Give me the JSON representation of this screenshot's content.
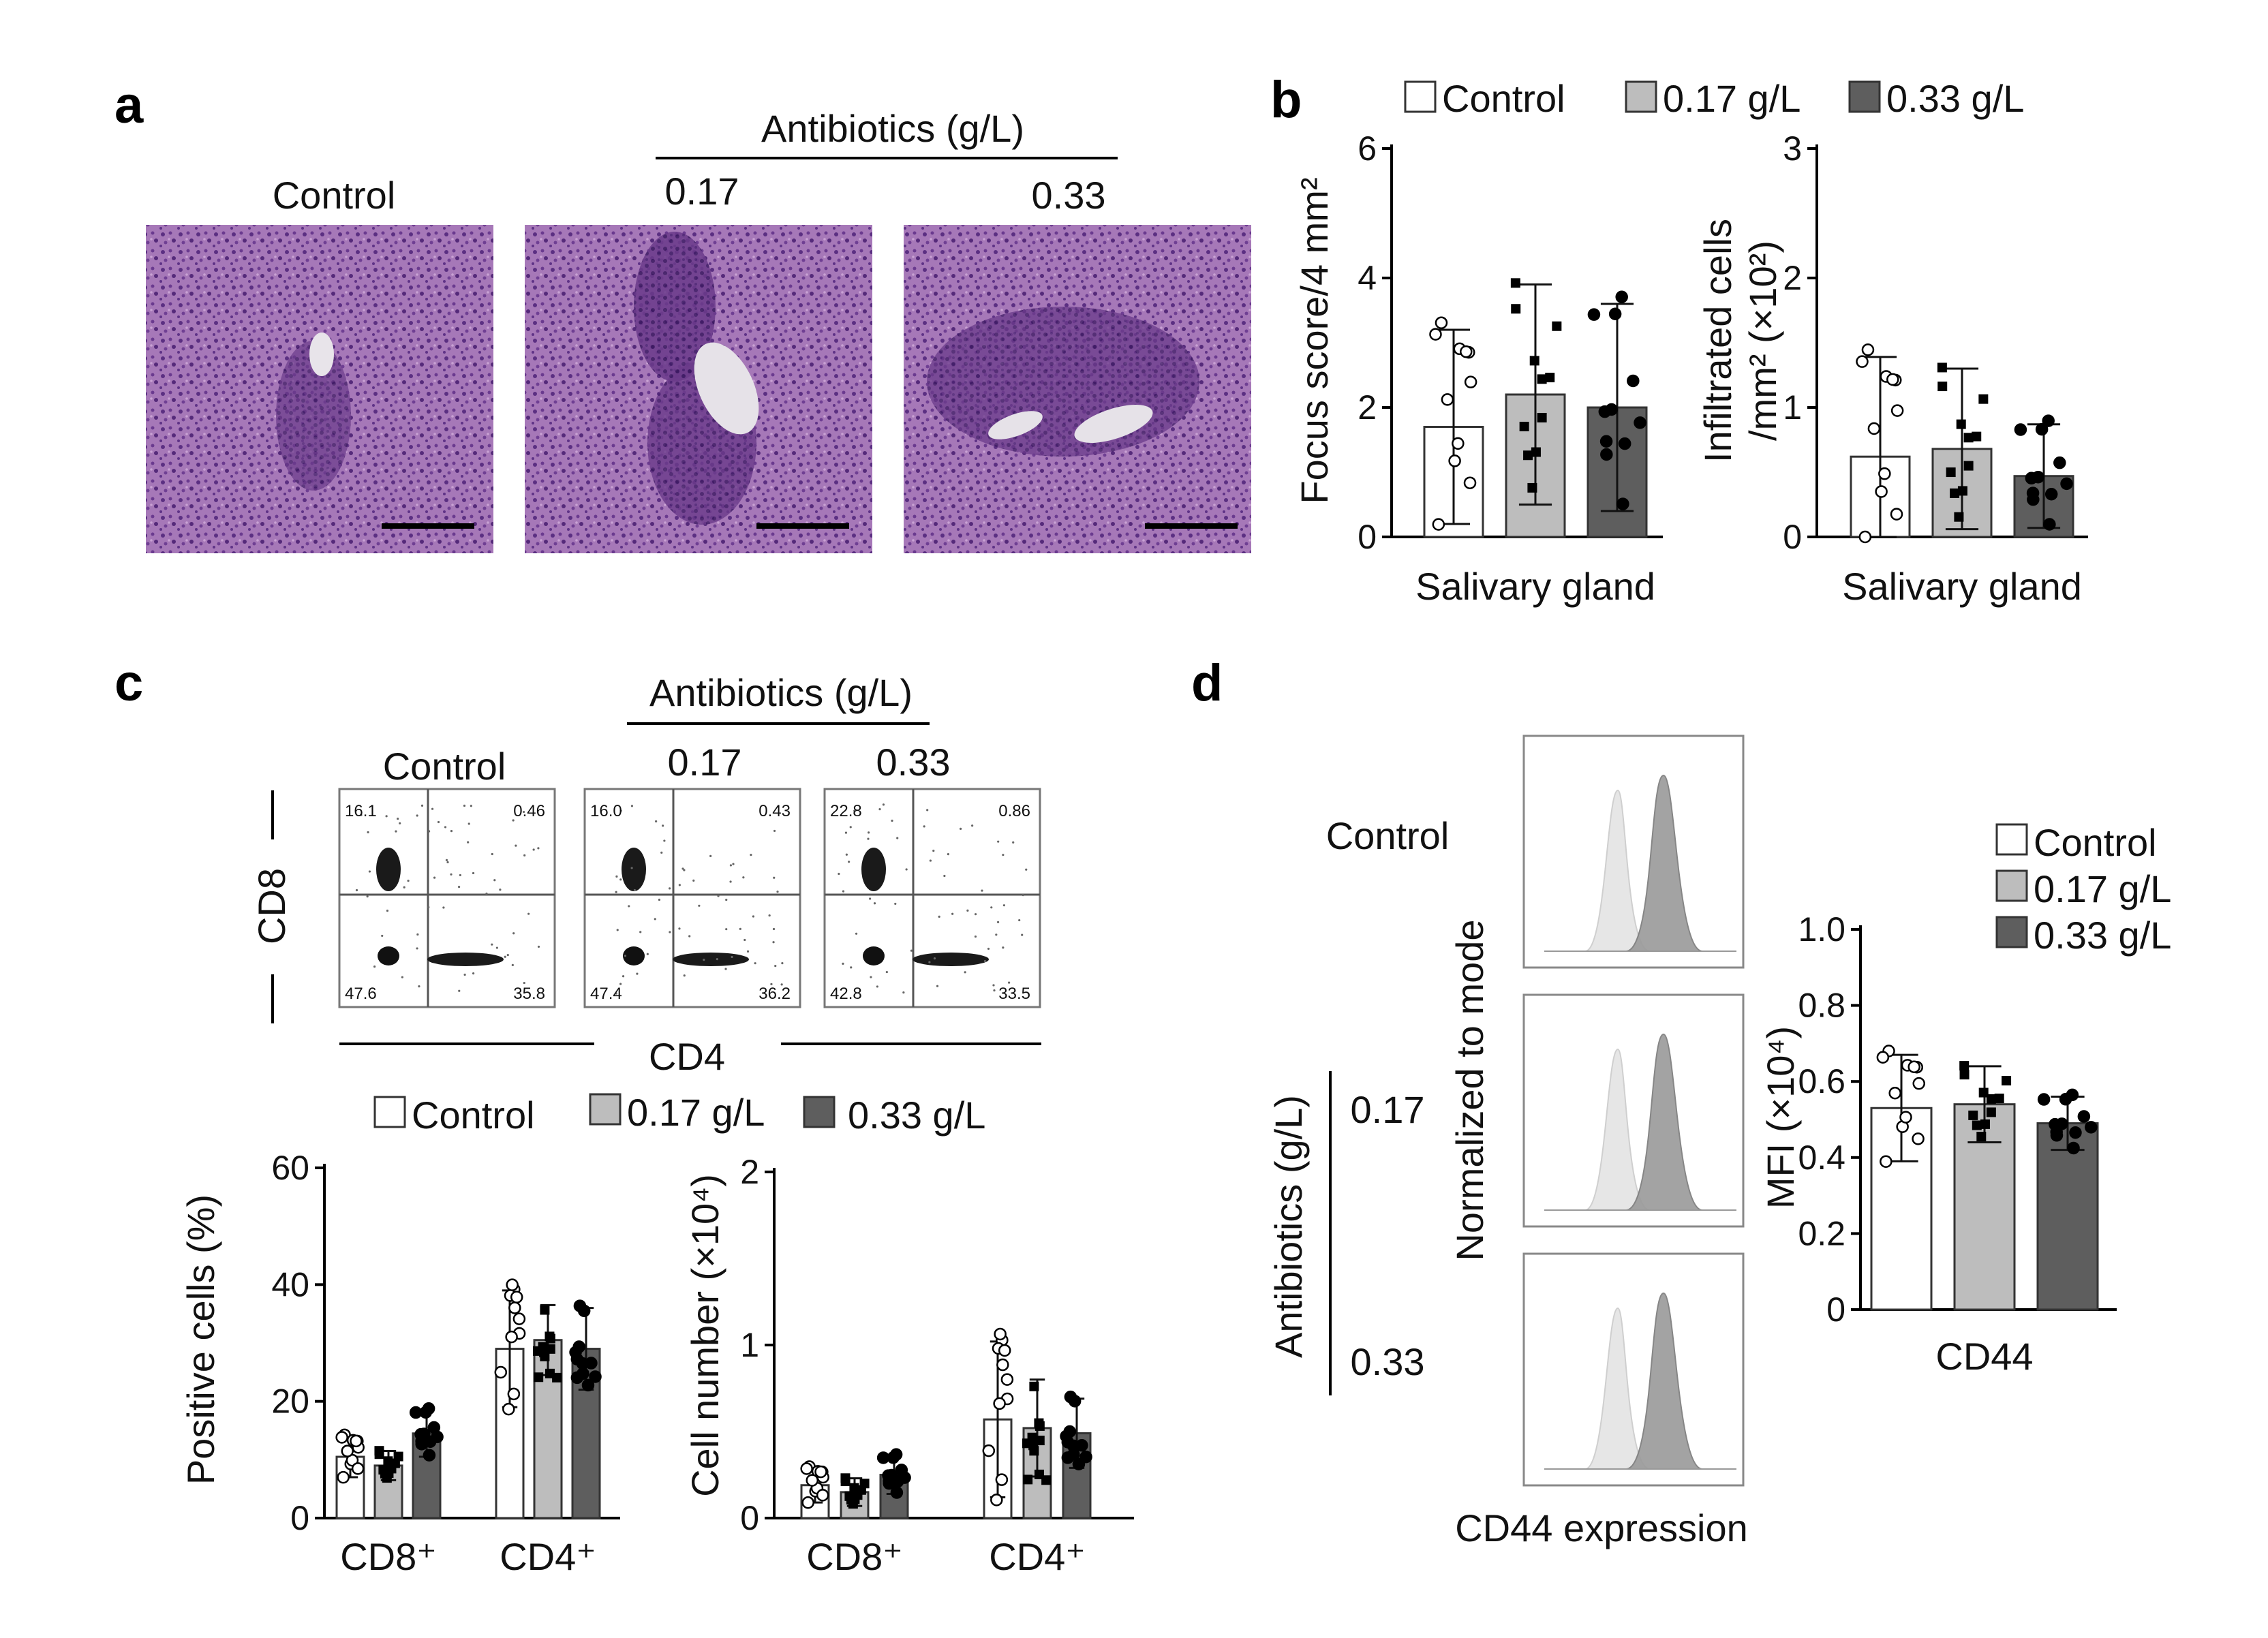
{
  "panel_labels": {
    "a": "a",
    "b": "b",
    "c": "c",
    "d": "d"
  },
  "legend": {
    "control": "Control",
    "low": "0.17 g/L",
    "high": "0.33 g/L"
  },
  "colors": {
    "control": "#ffffff",
    "low": "#bdbdbd",
    "high": "#5e5e5e",
    "he_stain": "#9a6fae"
  },
  "panel_a": {
    "header": "Antibiotics (g/L)",
    "labels": [
      "Control",
      "0.17",
      "0.33"
    ]
  },
  "panel_c": {
    "header": "Antibiotics (g/L)",
    "labels": [
      "Control",
      "0.17",
      "0.33"
    ],
    "y_axis_label": "CD8",
    "x_axis_label": "CD4",
    "quadrants": [
      {
        "ul": "16.1",
        "ur": "0.46",
        "ll": "47.6",
        "lr": "35.8"
      },
      {
        "ul": "16.0",
        "ur": "0.43",
        "ll": "47.4",
        "lr": "36.2"
      },
      {
        "ul": "22.8",
        "ur": "0.86",
        "ll": "42.8",
        "lr": "33.5"
      }
    ]
  },
  "panel_d": {
    "row_labels": {
      "control": "Control",
      "low": "0.17",
      "high": "0.33"
    },
    "side_label": "Antibiotics (g/L)",
    "y_axis_label": "Normalized to mode",
    "x_axis_label": "CD44 expression"
  },
  "chart_data": [
    {
      "id": "b1",
      "type": "bar",
      "categories": [
        "Salivary gland"
      ],
      "series": [
        {
          "name": "Control",
          "values": [
            1.7
          ],
          "sd": [
            1.5
          ]
        },
        {
          "name": "0.17 g/L",
          "values": [
            2.2
          ],
          "sd": [
            1.7
          ]
        },
        {
          "name": "0.33 g/L",
          "values": [
            2.0
          ],
          "sd": [
            1.6
          ]
        }
      ],
      "ylim": [
        0,
        6
      ],
      "yticks": [
        0,
        2,
        4,
        6
      ],
      "ylabel": "Focus score/4 mm²",
      "xlabel": "Salivary gland"
    },
    {
      "id": "b2",
      "type": "bar",
      "categories": [
        "Salivary gland"
      ],
      "series": [
        {
          "name": "Control",
          "values": [
            0.62
          ],
          "sd": [
            0.77
          ]
        },
        {
          "name": "0.17 g/L",
          "values": [
            0.68
          ],
          "sd": [
            0.62
          ]
        },
        {
          "name": "0.33 g/L",
          "values": [
            0.47
          ],
          "sd": [
            0.4
          ]
        }
      ],
      "ylim": [
        0,
        3
      ],
      "yticks": [
        0,
        1,
        2,
        3
      ],
      "ylabel_lines": [
        "Infiltrated cells",
        "/mm² (×10²)"
      ],
      "xlabel": "Salivary gland"
    },
    {
      "id": "c1",
      "type": "bar",
      "categories": [
        "CD8⁺",
        "CD4⁺"
      ],
      "series": [
        {
          "name": "Control",
          "values": [
            10.5,
            29
          ],
          "sd": [
            3.5,
            10
          ]
        },
        {
          "name": "0.17 g/L",
          "values": [
            9,
            30.5
          ],
          "sd": [
            2.5,
            6
          ]
        },
        {
          "name": "0.33 g/L",
          "values": [
            14.5,
            29
          ],
          "sd": [
            4,
            7
          ]
        }
      ],
      "ylim": [
        0,
        60
      ],
      "yticks": [
        0,
        20,
        40,
        60
      ],
      "ylabel": "Positive cells (%)"
    },
    {
      "id": "c2",
      "type": "bar",
      "categories": [
        "CD8⁺",
        "CD4⁺"
      ],
      "series": [
        {
          "name": "Control",
          "values": [
            0.19,
            0.57
          ],
          "sd": [
            0.1,
            0.45
          ]
        },
        {
          "name": "0.17 g/L",
          "values": [
            0.15,
            0.52
          ],
          "sd": [
            0.08,
            0.28
          ]
        },
        {
          "name": "0.33 g/L",
          "values": [
            0.25,
            0.49
          ],
          "sd": [
            0.11,
            0.2
          ]
        }
      ],
      "ylim": [
        0,
        2
      ],
      "yticks": [
        0,
        1,
        2
      ],
      "ylabel": "Cell number (×10⁴)"
    },
    {
      "id": "d1",
      "type": "bar",
      "categories": [
        "CD44"
      ],
      "series": [
        {
          "name": "Control",
          "values": [
            0.53
          ],
          "sd": [
            0.14
          ]
        },
        {
          "name": "0.17 g/L",
          "values": [
            0.54
          ],
          "sd": [
            0.1
          ]
        },
        {
          "name": "0.33 g/L",
          "values": [
            0.49
          ],
          "sd": [
            0.07
          ]
        }
      ],
      "ylim": [
        0,
        1.0
      ],
      "yticks": [
        0,
        0.2,
        0.4,
        0.6,
        0.8,
        1.0
      ],
      "ylabel": "MFI (×10⁴)",
      "xlabel": "CD44"
    }
  ]
}
